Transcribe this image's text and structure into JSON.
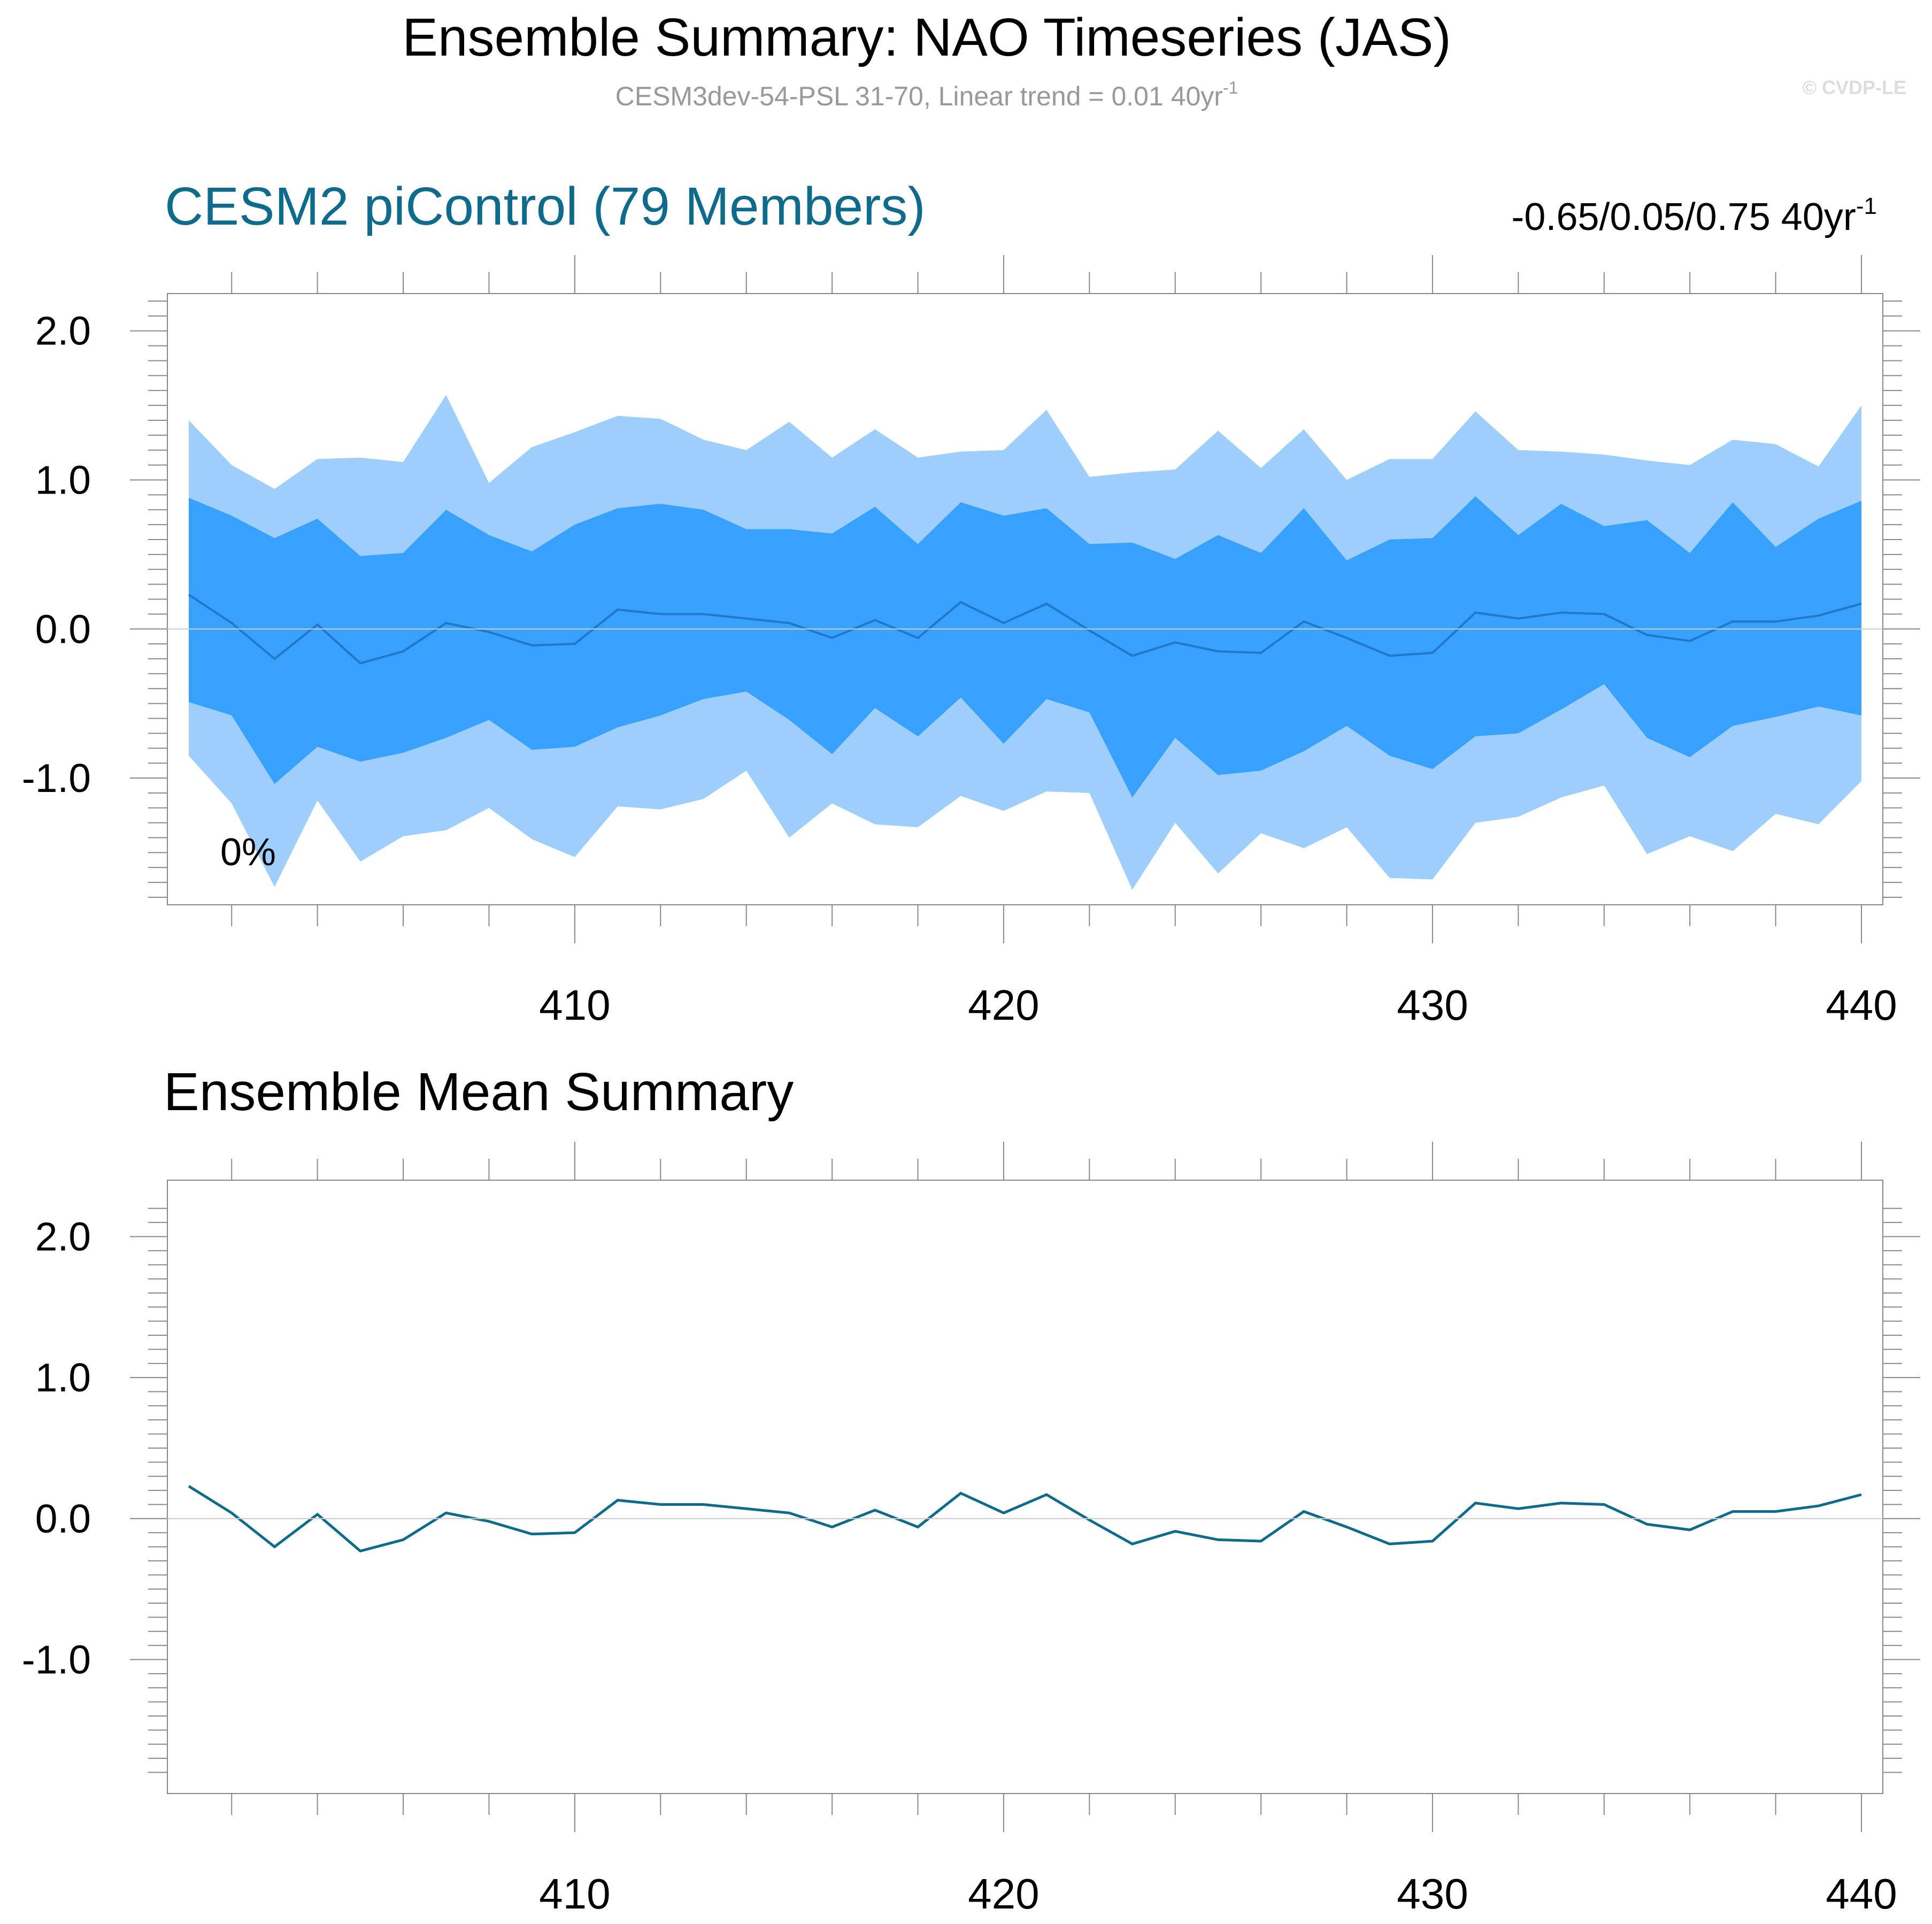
{
  "header": {
    "title": "Ensemble Summary: NAO Timeseries (JAS)",
    "subtitle": "CESM3dev-54-PSL 31-70, Linear trend = 0.01 40yr",
    "subtitle_sup": "-1",
    "credit": "© CVDP-LE"
  },
  "colors": {
    "outer_band": "#9ecffc",
    "inner_band": "#38a0fd",
    "member_mean_line": "#1f78c8",
    "mean_line": "#0f6b8c",
    "model_title": "#0f6b8c",
    "axis": "#888888",
    "text": "#000000",
    "subtitle": "#999999",
    "credit": "#dddddd"
  },
  "chart_data": [
    {
      "type": "area",
      "title": "CESM2 piControl (79 Members)",
      "trend_label": "-0.65/0.05/0.75 40yr",
      "trend_label_sup": "-1",
      "annotation": "0%",
      "x": [
        401,
        402,
        403,
        404,
        405,
        406,
        407,
        408,
        409,
        410,
        411,
        412,
        413,
        414,
        415,
        416,
        417,
        418,
        419,
        420,
        421,
        422,
        423,
        424,
        425,
        426,
        427,
        428,
        429,
        430,
        431,
        432,
        433,
        434,
        435,
        436,
        437,
        438,
        439,
        440
      ],
      "xlim": [
        401,
        440
      ],
      "ylim": [
        -1.85,
        2.25
      ],
      "x_tick_labels": [
        "410",
        "420",
        "430",
        "440"
      ],
      "y_tick_labels": [
        "2.0",
        "1.0",
        "0.0",
        "-1.0"
      ],
      "series": [
        {
          "role": "outer_upper",
          "values": [
            1.4,
            1.1,
            0.94,
            1.14,
            1.15,
            1.12,
            1.57,
            0.98,
            1.22,
            1.32,
            1.43,
            1.41,
            1.27,
            1.2,
            1.39,
            1.15,
            1.34,
            1.15,
            1.19,
            1.2,
            1.47,
            1.02,
            1.05,
            1.07,
            1.33,
            1.08,
            1.34,
            1.0,
            1.14,
            1.14,
            1.46,
            1.2,
            1.19,
            1.17,
            1.13,
            1.1,
            1.27,
            1.24,
            1.09,
            1.5
          ]
        },
        {
          "role": "inner_upper",
          "values": [
            0.88,
            0.76,
            0.61,
            0.74,
            0.49,
            0.51,
            0.8,
            0.63,
            0.52,
            0.7,
            0.81,
            0.84,
            0.8,
            0.67,
            0.67,
            0.64,
            0.82,
            0.57,
            0.85,
            0.76,
            0.81,
            0.57,
            0.58,
            0.47,
            0.63,
            0.51,
            0.81,
            0.46,
            0.6,
            0.61,
            0.89,
            0.63,
            0.84,
            0.69,
            0.73,
            0.51,
            0.85,
            0.55,
            0.74,
            0.86
          ]
        },
        {
          "role": "ensemble_mean",
          "values": [
            0.23,
            0.04,
            -0.2,
            0.03,
            -0.23,
            -0.15,
            0.04,
            -0.02,
            -0.11,
            -0.1,
            0.13,
            0.1,
            0.1,
            0.07,
            0.04,
            -0.06,
            0.06,
            -0.06,
            0.18,
            0.04,
            0.17,
            -0.01,
            -0.18,
            -0.09,
            -0.15,
            -0.16,
            0.05,
            -0.06,
            -0.18,
            -0.16,
            0.11,
            0.07,
            0.11,
            0.1,
            -0.04,
            -0.08,
            0.05,
            0.05,
            0.09,
            0.17
          ]
        },
        {
          "role": "inner_lower",
          "values": [
            -0.49,
            -0.58,
            -1.04,
            -0.79,
            -0.89,
            -0.83,
            -0.73,
            -0.61,
            -0.81,
            -0.79,
            -0.66,
            -0.58,
            -0.47,
            -0.42,
            -0.61,
            -0.84,
            -0.53,
            -0.72,
            -0.46,
            -0.77,
            -0.47,
            -0.56,
            -1.13,
            -0.73,
            -0.98,
            -0.95,
            -0.82,
            -0.65,
            -0.85,
            -0.94,
            -0.72,
            -0.7,
            -0.54,
            -0.37,
            -0.73,
            -0.86,
            -0.65,
            -0.59,
            -0.52,
            -0.58
          ]
        },
        {
          "role": "outer_lower",
          "values": [
            -0.85,
            -1.17,
            -1.73,
            -1.15,
            -1.56,
            -1.39,
            -1.35,
            -1.2,
            -1.41,
            -1.53,
            -1.19,
            -1.21,
            -1.14,
            -0.95,
            -1.4,
            -1.17,
            -1.31,
            -1.33,
            -1.12,
            -1.22,
            -1.09,
            -1.1,
            -1.75,
            -1.3,
            -1.64,
            -1.37,
            -1.47,
            -1.33,
            -1.67,
            -1.68,
            -1.3,
            -1.26,
            -1.13,
            -1.05,
            -1.51,
            -1.39,
            -1.49,
            -1.24,
            -1.31,
            -1.02
          ]
        }
      ]
    },
    {
      "type": "line",
      "title": "Ensemble Mean Summary",
      "x": [
        401,
        402,
        403,
        404,
        405,
        406,
        407,
        408,
        409,
        410,
        411,
        412,
        413,
        414,
        415,
        416,
        417,
        418,
        419,
        420,
        421,
        422,
        423,
        424,
        425,
        426,
        427,
        428,
        429,
        430,
        431,
        432,
        433,
        434,
        435,
        436,
        437,
        438,
        439,
        440
      ],
      "xlim": [
        401,
        440
      ],
      "ylim": [
        -1.95,
        2.4
      ],
      "x_tick_labels": [
        "410",
        "420",
        "430",
        "440"
      ],
      "y_tick_labels": [
        "2.0",
        "1.0",
        "0.0",
        "-1.0"
      ],
      "series": [
        {
          "role": "ensemble_mean",
          "values": [
            0.23,
            0.04,
            -0.2,
            0.03,
            -0.23,
            -0.15,
            0.04,
            -0.02,
            -0.11,
            -0.1,
            0.13,
            0.1,
            0.1,
            0.07,
            0.04,
            -0.06,
            0.06,
            -0.06,
            0.18,
            0.04,
            0.17,
            -0.01,
            -0.18,
            -0.09,
            -0.15,
            -0.16,
            0.05,
            -0.06,
            -0.18,
            -0.16,
            0.11,
            0.07,
            0.11,
            0.1,
            -0.04,
            -0.08,
            0.05,
            0.05,
            0.09,
            0.17
          ]
        }
      ]
    }
  ]
}
